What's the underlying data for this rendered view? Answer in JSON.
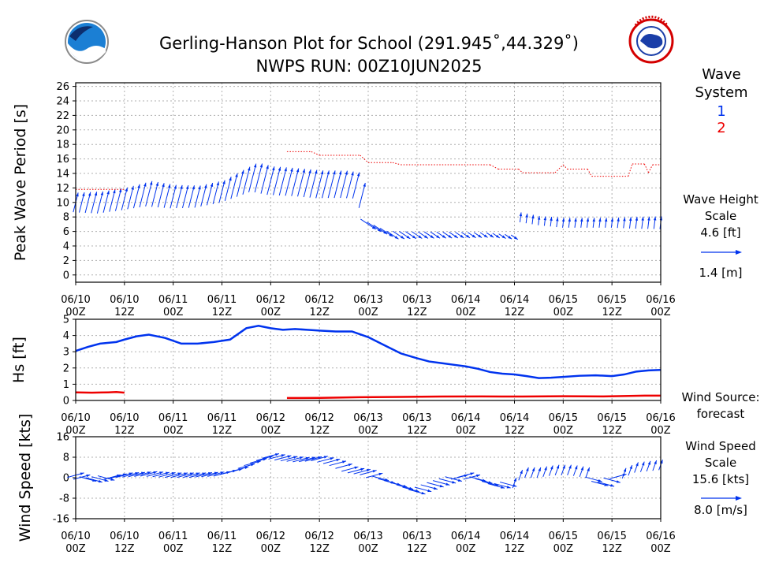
{
  "header": {
    "title_line1": "Gerling-Hanson Plot for School (291.945˚,44.329˚)",
    "title_line2": "NWPS RUN: 00Z10JUN2025"
  },
  "logos": {
    "left_icon": "noaa-logo",
    "right_icon": "nws-logo"
  },
  "colors": {
    "system1": "#0033ee",
    "system2": "#ee0000",
    "grid": "#b0b0b0"
  },
  "side": {
    "wave_system_line1": "Wave",
    "wave_system_line2": "System",
    "system1_label": "1",
    "system2_label": "2",
    "wave_height_scale": [
      "Wave Height",
      "Scale",
      "4.6 [ft]"
    ],
    "wave_height_metric": "1.4 [m]",
    "wind_source": [
      "Wind Source:",
      "forecast"
    ],
    "wind_speed_scale": [
      "Wind Speed",
      "Scale",
      "15.6 [kts]"
    ],
    "wind_speed_metric": "8.0 [m/s]"
  },
  "chart_data": [
    {
      "type": "vector",
      "name": "period-panel",
      "ylabel": "Peak Wave Period [s]",
      "xlabel": "",
      "ylim": [
        -1,
        26.5
      ],
      "yticks": [
        0,
        2,
        4,
        6,
        8,
        10,
        12,
        14,
        16,
        18,
        20,
        22,
        24,
        26
      ],
      "x_range_hours": [
        0,
        144
      ],
      "xticks": [
        {
          "h": 0,
          "l1": "06/10",
          "l2": "00Z"
        },
        {
          "h": 12,
          "l1": "06/10",
          "l2": "12Z"
        },
        {
          "h": 24,
          "l1": "06/11",
          "l2": "00Z"
        },
        {
          "h": 36,
          "l1": "06/11",
          "l2": "12Z"
        },
        {
          "h": 48,
          "l1": "06/12",
          "l2": "00Z"
        },
        {
          "h": 60,
          "l1": "06/12",
          "l2": "12Z"
        },
        {
          "h": 72,
          "l1": "06/13",
          "l2": "00Z"
        },
        {
          "h": 84,
          "l1": "06/13",
          "l2": "12Z"
        },
        {
          "h": 96,
          "l1": "06/14",
          "l2": "00Z"
        },
        {
          "h": 108,
          "l1": "06/14",
          "l2": "12Z"
        },
        {
          "h": 120,
          "l1": "06/15",
          "l2": "00Z"
        },
        {
          "h": 132,
          "l1": "06/15",
          "l2": "12Z"
        },
        {
          "h": 144,
          "l1": "06/16",
          "l2": "00Z"
        }
      ],
      "grid": true,
      "series": [
        {
          "name": "1",
          "kind": "arrows",
          "points": [
            [
              0,
              10,
              3.1
            ],
            [
              6,
              10,
              3.5
            ],
            [
              12,
              10.5,
              3.6
            ],
            [
              18,
              11.2,
              4.0
            ],
            [
              24,
              10.8,
              3.7
            ],
            [
              30,
              10.8,
              3.5
            ],
            [
              36,
              11.5,
              3.6
            ],
            [
              40,
              12.5,
              4.2
            ],
            [
              44,
              13.5,
              4.6
            ],
            [
              48,
              13,
              4.5
            ],
            [
              54,
              12.8,
              4.4
            ],
            [
              60,
              12.5,
              4.4
            ],
            [
              66,
              12.5,
              4.3
            ],
            [
              70,
              12.3,
              4.1
            ],
            [
              72,
              7,
              3.6
            ],
            [
              78,
              5.5,
              2.8
            ],
            [
              84,
              5.5,
              2.4
            ],
            [
              90,
              5.5,
              2.2
            ],
            [
              96,
              5.5,
              2.0
            ],
            [
              102,
              5.5,
              1.7
            ],
            [
              108,
              5.2,
              1.6
            ],
            [
              109,
              8,
              1.5
            ],
            [
              114,
              7.5,
              1.4
            ],
            [
              120,
              7.2,
              1.5
            ],
            [
              126,
              7.2,
              1.5
            ],
            [
              132,
              7.2,
              1.5
            ],
            [
              138,
              7.2,
              1.8
            ],
            [
              144,
              7.2,
              1.9
            ]
          ]
        },
        {
          "name": "2",
          "kind": "dashes",
          "points": [
            [
              0,
              11.8
            ],
            [
              12,
              11.8
            ],
            [
              52,
              17
            ],
            [
              58,
              17
            ],
            [
              60,
              16.5
            ],
            [
              70,
              16.5
            ],
            [
              72,
              15.5
            ],
            [
              78,
              15.5
            ],
            [
              80,
              15.2
            ],
            [
              102,
              15.2
            ],
            [
              104,
              14.6
            ],
            [
              109,
              14.6
            ],
            [
              110,
              14.1
            ],
            [
              118,
              14.1
            ],
            [
              120,
              15.2
            ],
            [
              121,
              14.6
            ],
            [
              126,
              14.6
            ],
            [
              127,
              13.6
            ],
            [
              136,
              13.6
            ],
            [
              137,
              15.3
            ],
            [
              140,
              15.3
            ],
            [
              141,
              14.1
            ],
            [
              142,
              15.2
            ],
            [
              144,
              15.2
            ]
          ]
        }
      ]
    },
    {
      "type": "line",
      "name": "hs-panel",
      "ylabel": "Hs [ft]",
      "xlabel": "",
      "ylim": [
        0,
        5
      ],
      "yticks": [
        0,
        1,
        2,
        3,
        4,
        5
      ],
      "x_range_hours": [
        0,
        144
      ],
      "grid": true,
      "series": [
        {
          "name": "1",
          "points": [
            [
              0,
              3.05
            ],
            [
              3,
              3.3
            ],
            [
              6,
              3.5
            ],
            [
              10,
              3.6
            ],
            [
              12,
              3.75
            ],
            [
              15,
              3.95
            ],
            [
              18,
              4.05
            ],
            [
              22,
              3.85
            ],
            [
              26,
              3.5
            ],
            [
              30,
              3.5
            ],
            [
              34,
              3.6
            ],
            [
              38,
              3.75
            ],
            [
              40,
              4.1
            ],
            [
              42,
              4.45
            ],
            [
              45,
              4.6
            ],
            [
              48,
              4.45
            ],
            [
              51,
              4.35
            ],
            [
              54,
              4.4
            ],
            [
              57,
              4.35
            ],
            [
              60,
              4.3
            ],
            [
              64,
              4.25
            ],
            [
              68,
              4.25
            ],
            [
              72,
              3.9
            ],
            [
              76,
              3.4
            ],
            [
              80,
              2.9
            ],
            [
              84,
              2.6
            ],
            [
              87,
              2.4
            ],
            [
              90,
              2.3
            ],
            [
              93,
              2.2
            ],
            [
              96,
              2.1
            ],
            [
              99,
              1.95
            ],
            [
              102,
              1.75
            ],
            [
              105,
              1.65
            ],
            [
              108,
              1.6
            ],
            [
              111,
              1.5
            ],
            [
              114,
              1.38
            ],
            [
              117,
              1.4
            ],
            [
              120,
              1.45
            ],
            [
              124,
              1.52
            ],
            [
              128,
              1.55
            ],
            [
              132,
              1.5
            ],
            [
              135,
              1.6
            ],
            [
              138,
              1.78
            ],
            [
              141,
              1.85
            ],
            [
              144,
              1.88
            ]
          ]
        },
        {
          "name": "2",
          "points": [
            [
              0,
              0.5
            ],
            [
              4,
              0.48
            ],
            [
              8,
              0.5
            ],
            [
              10,
              0.52
            ],
            [
              12,
              0.48
            ]
          ],
          "points_b": [
            [
              52,
              0.15
            ],
            [
              60,
              0.16
            ],
            [
              70,
              0.2
            ],
            [
              80,
              0.22
            ],
            [
              90,
              0.24
            ],
            [
              100,
              0.25
            ],
            [
              110,
              0.24
            ],
            [
              120,
              0.26
            ],
            [
              130,
              0.25
            ],
            [
              140,
              0.3
            ],
            [
              144,
              0.3
            ]
          ]
        }
      ]
    },
    {
      "type": "vector",
      "name": "wind-panel",
      "ylabel": "Wind Speed [kts]",
      "xlabel": "",
      "ylim": [
        -16,
        16
      ],
      "yticks": [
        -16,
        -8,
        0,
        8,
        16
      ],
      "x_range_hours": [
        0,
        144
      ],
      "grid": true,
      "series": [
        {
          "name": "wind",
          "kind": "arrows",
          "points": [
            [
              0,
              1
            ],
            [
              4,
              -1
            ],
            [
              8,
              0
            ],
            [
              12,
              1
            ],
            [
              18,
              1.5
            ],
            [
              24,
              1
            ],
            [
              30,
              1
            ],
            [
              36,
              1.5
            ],
            [
              40,
              3
            ],
            [
              44,
              6
            ],
            [
              48,
              8.5
            ],
            [
              52,
              7.5
            ],
            [
              56,
              7
            ],
            [
              60,
              7.5
            ],
            [
              64,
              6
            ],
            [
              68,
              3
            ],
            [
              72,
              2
            ],
            [
              76,
              -1
            ],
            [
              80,
              -3
            ],
            [
              84,
              -5.5
            ],
            [
              88,
              -3
            ],
            [
              92,
              -1
            ],
            [
              96,
              1
            ],
            [
              100,
              -1
            ],
            [
              104,
              -3.5
            ],
            [
              108,
              -2
            ],
            [
              110,
              2
            ],
            [
              114,
              2
            ],
            [
              118,
              3
            ],
            [
              122,
              3
            ],
            [
              126,
              2
            ],
            [
              128,
              -1.5
            ],
            [
              130,
              -3
            ],
            [
              134,
              1
            ],
            [
              138,
              4
            ],
            [
              144,
              5
            ]
          ]
        }
      ]
    }
  ]
}
